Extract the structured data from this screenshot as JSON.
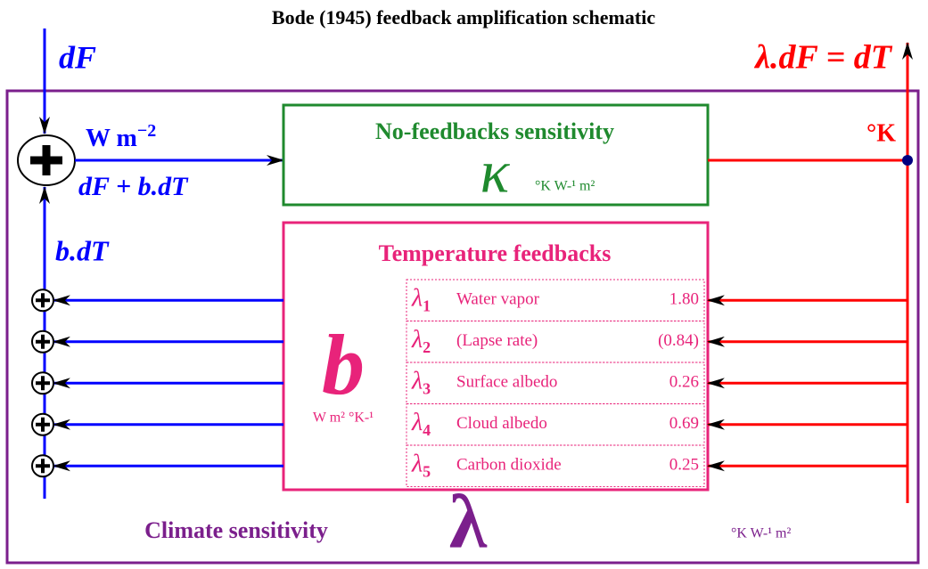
{
  "title": "Bode (1945) feedback amplification schematic",
  "input": {
    "label": "dF"
  },
  "output": {
    "label": "λ.dF = dT"
  },
  "sum": {
    "units": {
      "base": "W m",
      "sup": "−2"
    },
    "label": "dF + b.dT"
  },
  "no_feedbacks": {
    "title": "No-feedbacks sensitivity",
    "symbol": "κ",
    "units": "°K W-¹ m²",
    "output_units": "°K"
  },
  "feedback_signal": "b.dT",
  "feedbacks": {
    "title": "Temperature feedbacks",
    "symbol": "b",
    "units": "W m² °K-¹",
    "rows": [
      {
        "symbol": "λ",
        "sub": "1",
        "name": "Water vapor",
        "value": "1.80"
      },
      {
        "symbol": "λ",
        "sub": "2",
        "name": "(Lapse rate)",
        "value": "(0.84)"
      },
      {
        "symbol": "λ",
        "sub": "3",
        "name": "Surface albedo",
        "value": "0.26"
      },
      {
        "symbol": "λ",
        "sub": "4",
        "name": "Cloud albedo",
        "value": "0.69"
      },
      {
        "symbol": "λ",
        "sub": "5",
        "name": "Carbon dioxide",
        "value": "0.25"
      }
    ]
  },
  "climate": {
    "title": "Climate sensitivity",
    "symbol": "λ",
    "units": "°K W-¹ m²"
  }
}
